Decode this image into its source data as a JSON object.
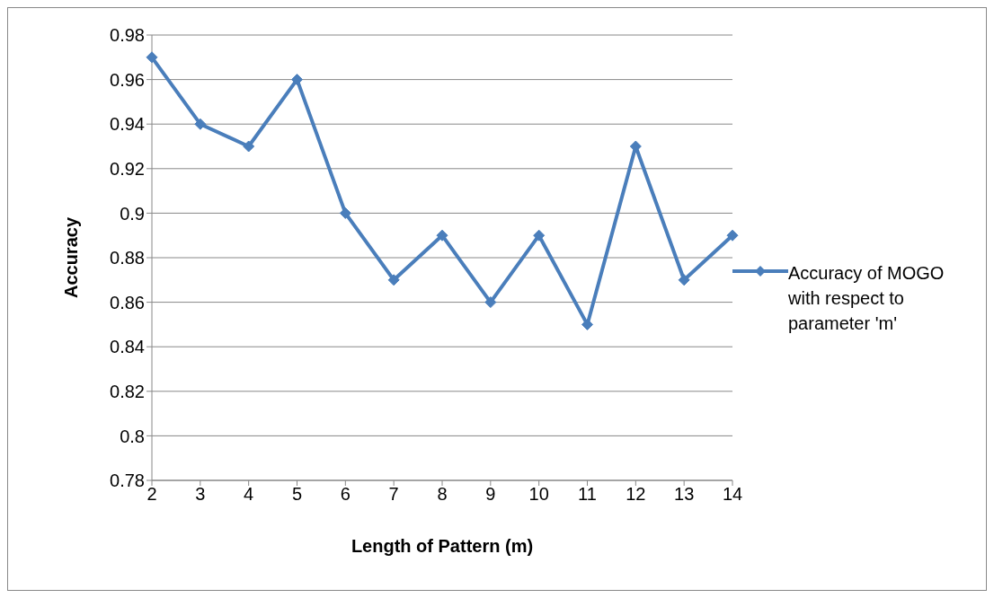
{
  "chart_data": {
    "type": "line",
    "xlabel": "Length of Pattern (m)",
    "ylabel": "Accuracy",
    "categories": [
      "2",
      "3",
      "4",
      "5",
      "6",
      "7",
      "8",
      "9",
      "10",
      "11",
      "12",
      "13",
      "14"
    ],
    "series": [
      {
        "name": "Accuracy of MOGO with respect to parameter 'm'",
        "color": "#4a7ebb",
        "values": [
          0.97,
          0.94,
          0.93,
          0.96,
          0.9,
          0.87,
          0.89,
          0.86,
          0.89,
          0.85,
          0.93,
          0.87,
          0.89
        ]
      }
    ],
    "ylim": [
      0.78,
      0.98
    ],
    "yticks": [
      0.78,
      0.8,
      0.82,
      0.84,
      0.86,
      0.88,
      0.9,
      0.92,
      0.94,
      0.96,
      0.98
    ],
    "grid": "y",
    "legend": "right",
    "marker": "diamond",
    "line_style": "solid"
  }
}
